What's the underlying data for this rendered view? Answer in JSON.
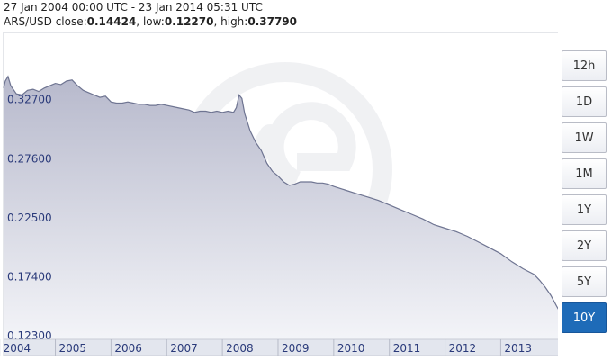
{
  "header": {
    "range_text": "27 Jan 2004 00:00 UTC - 23 Jan 2014 05:31 UTC",
    "pair_label": "ARS/USD",
    "close_label": "close:",
    "close_value": "0.14424",
    "low_label": "low:",
    "low_value": "0.12270",
    "high_label": "high:",
    "high_value": "0.37790",
    "separator": ", "
  },
  "range_buttons": [
    {
      "label": "12h",
      "active": false
    },
    {
      "label": "1D",
      "active": false
    },
    {
      "label": "1W",
      "active": false
    },
    {
      "label": "1M",
      "active": false
    },
    {
      "label": "1Y",
      "active": false
    },
    {
      "label": "2Y",
      "active": false
    },
    {
      "label": "5Y",
      "active": false
    },
    {
      "label": "10Y",
      "active": true
    }
  ],
  "colors": {
    "line": "#6e7491",
    "area_top": "#b7b9cc",
    "area_bottom": "#f3f4f8",
    "active_button": "#1e6bb8",
    "tick_text": "#2a3a7a"
  },
  "chart_data": {
    "type": "area",
    "title": "",
    "xlabel": "",
    "ylabel": "",
    "y_ticks": [
      "0.32700",
      "0.27600",
      "0.22500",
      "0.17400",
      "0.12300"
    ],
    "x_ticks": [
      "2004",
      "2005",
      "2006",
      "2007",
      "2008",
      "2009",
      "2010",
      "2011",
      "2012",
      "2013"
    ],
    "ylim": [
      0.12,
      0.385
    ],
    "xlim": [
      2004.07,
      2014.06
    ],
    "grid": false,
    "series": [
      {
        "x": [
          2004.07,
          2004.1,
          2004.15,
          2004.2,
          2004.3,
          2004.4,
          2004.5,
          2004.6,
          2004.7,
          2004.8,
          2004.9,
          2005.0,
          2005.1,
          2005.2,
          2005.3,
          2005.4,
          2005.5,
          2005.6,
          2005.7,
          2005.8,
          2005.9,
          2006.0,
          2006.1,
          2006.2,
          2006.3,
          2006.4,
          2006.5,
          2006.6,
          2006.7,
          2006.8,
          2006.9,
          2007.0,
          2007.2,
          2007.4,
          2007.5,
          2007.6,
          2007.7,
          2007.8,
          2007.9,
          2008.0,
          2008.1,
          2008.2,
          2008.25,
          2008.3,
          2008.35,
          2008.4,
          2008.5,
          2008.6,
          2008.7,
          2008.8,
          2008.9,
          2009.0,
          2009.1,
          2009.2,
          2009.3,
          2009.4,
          2009.5,
          2009.6,
          2009.7,
          2009.8,
          2009.9,
          2010.0,
          2010.2,
          2010.4,
          2010.6,
          2010.8,
          2011.0,
          2011.2,
          2011.4,
          2011.6,
          2011.8,
          2012.0,
          2012.2,
          2012.4,
          2012.6,
          2012.8,
          2013.0,
          2013.2,
          2013.4,
          2013.6,
          2013.7,
          2013.8,
          2013.9,
          2014.0,
          2014.06
        ],
        "values": [
          0.337,
          0.343,
          0.347,
          0.339,
          0.332,
          0.331,
          0.335,
          0.336,
          0.334,
          0.337,
          0.339,
          0.341,
          0.34,
          0.343,
          0.344,
          0.339,
          0.335,
          0.333,
          0.331,
          0.329,
          0.33,
          0.325,
          0.324,
          0.324,
          0.325,
          0.324,
          0.323,
          0.323,
          0.322,
          0.322,
          0.323,
          0.322,
          0.32,
          0.318,
          0.316,
          0.317,
          0.317,
          0.316,
          0.317,
          0.316,
          0.317,
          0.316,
          0.32,
          0.331,
          0.328,
          0.315,
          0.3,
          0.29,
          0.283,
          0.272,
          0.265,
          0.261,
          0.256,
          0.253,
          0.254,
          0.256,
          0.256,
          0.256,
          0.255,
          0.255,
          0.254,
          0.252,
          0.249,
          0.246,
          0.243,
          0.24,
          0.236,
          0.232,
          0.228,
          0.224,
          0.219,
          0.216,
          0.213,
          0.209,
          0.204,
          0.199,
          0.194,
          0.187,
          0.181,
          0.176,
          0.171,
          0.165,
          0.158,
          0.149,
          0.144
        ]
      }
    ]
  }
}
